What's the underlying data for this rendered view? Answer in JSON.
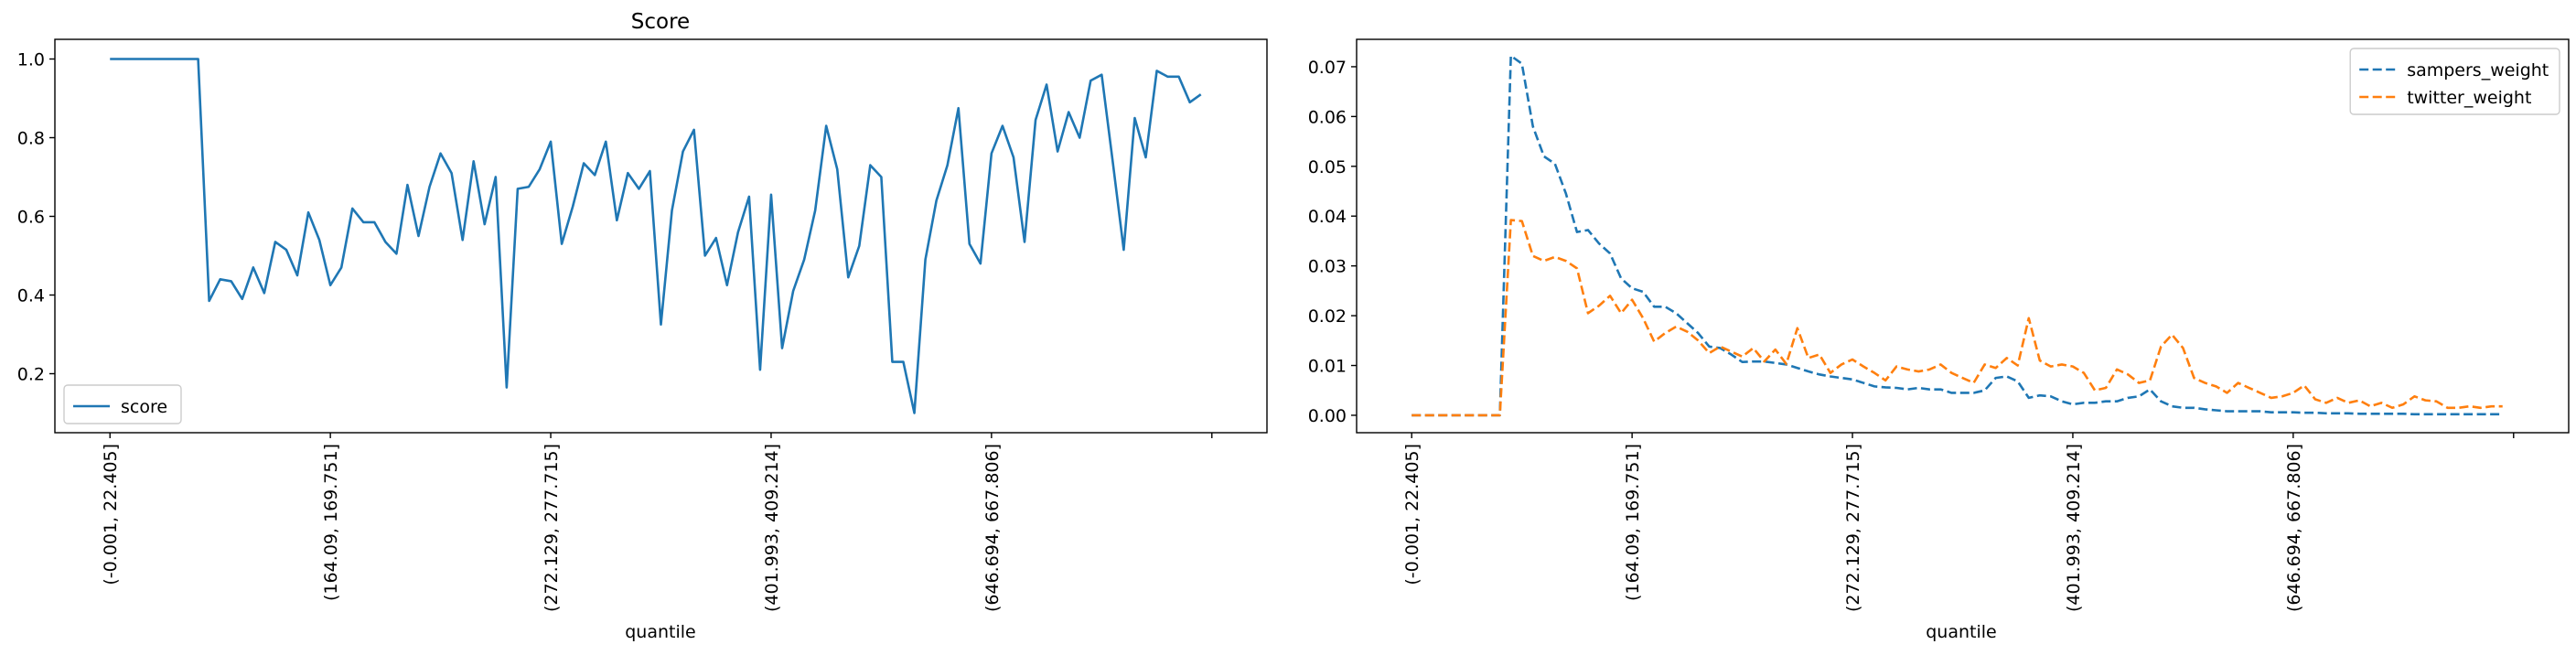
{
  "chart_data": [
    {
      "type": "line",
      "title": "Score",
      "xlabel": "quantile",
      "ylabel": "",
      "xlim": [
        -5,
        105
      ],
      "ylim": [
        0.05,
        1.05
      ],
      "grid": false,
      "legend_position": "lower-left",
      "xticks": [
        0,
        20,
        40,
        60,
        80,
        100
      ],
      "xtick_labels": [
        "(-0.001, 22.405]",
        "(164.09, 169.751]",
        "(272.129, 277.715]",
        "(401.993, 409.214]",
        "(646.694, 667.806]",
        ""
      ],
      "yticks": [
        0.2,
        0.4,
        0.6,
        0.8,
        1.0
      ],
      "ytick_labels": [
        "0.2",
        "0.4",
        "0.6",
        "0.8",
        "1.0"
      ],
      "series": [
        {
          "name": "score",
          "color": "#1f77b4",
          "dash": "solid",
          "values": [
            1.0,
            1.0,
            1.0,
            1.0,
            1.0,
            1.0,
            1.0,
            1.0,
            1.0,
            0.385,
            0.44,
            0.435,
            0.39,
            0.47,
            0.405,
            0.535,
            0.515,
            0.45,
            0.61,
            0.54,
            0.425,
            0.47,
            0.62,
            0.585,
            0.585,
            0.535,
            0.505,
            0.68,
            0.55,
            0.675,
            0.76,
            0.71,
            0.54,
            0.74,
            0.58,
            0.7,
            0.165,
            0.67,
            0.675,
            0.72,
            0.79,
            0.53,
            0.625,
            0.735,
            0.705,
            0.79,
            0.59,
            0.71,
            0.67,
            0.715,
            0.325,
            0.615,
            0.765,
            0.82,
            0.5,
            0.545,
            0.425,
            0.56,
            0.65,
            0.21,
            0.655,
            0.265,
            0.41,
            0.49,
            0.615,
            0.83,
            0.72,
            0.445,
            0.525,
            0.73,
            0.7,
            0.23,
            0.23,
            0.1,
            0.49,
            0.64,
            0.73,
            0.875,
            0.53,
            0.48,
            0.76,
            0.83,
            0.75,
            0.535,
            0.845,
            0.935,
            0.765,
            0.865,
            0.8,
            0.945,
            0.96,
            0.74,
            0.515,
            0.85,
            0.75,
            0.97,
            0.955,
            0.955,
            0.89,
            0.91
          ]
        }
      ]
    },
    {
      "type": "line",
      "title": "",
      "xlabel": "quantile",
      "ylabel": "",
      "xlim": [
        -5,
        105
      ],
      "ylim": [
        -0.0035,
        0.0755
      ],
      "grid": false,
      "legend_position": "upper-right",
      "xticks": [
        0,
        20,
        40,
        60,
        80,
        100
      ],
      "xtick_labels": [
        "(-0.001, 22.405]",
        "(164.09, 169.751]",
        "(272.129, 277.715]",
        "(401.993, 409.214]",
        "(646.694, 667.806]",
        ""
      ],
      "yticks": [
        0.0,
        0.01,
        0.02,
        0.03,
        0.04,
        0.05,
        0.06,
        0.07
      ],
      "ytick_labels": [
        "0.00",
        "0.01",
        "0.02",
        "0.03",
        "0.04",
        "0.05",
        "0.06",
        "0.07"
      ],
      "series": [
        {
          "name": "sampers_weight",
          "color": "#1f77b4",
          "dash": "dashed",
          "values": [
            0,
            0,
            0,
            0,
            0,
            0,
            0,
            0,
            0,
            0.0722,
            0.0706,
            0.058,
            0.052,
            0.0505,
            0.0445,
            0.0368,
            0.0372,
            0.0345,
            0.0325,
            0.0275,
            0.0255,
            0.0248,
            0.0218,
            0.0218,
            0.0205,
            0.0185,
            0.0165,
            0.0138,
            0.0135,
            0.0122,
            0.0107,
            0.0108,
            0.0108,
            0.0105,
            0.0102,
            0.0095,
            0.0088,
            0.0082,
            0.0078,
            0.0075,
            0.0072,
            0.0065,
            0.0058,
            0.0056,
            0.0055,
            0.0052,
            0.0055,
            0.0052,
            0.0052,
            0.0045,
            0.0045,
            0.0045,
            0.005,
            0.0075,
            0.0078,
            0.0068,
            0.0035,
            0.004,
            0.0038,
            0.0028,
            0.0022,
            0.0025,
            0.0025,
            0.0028,
            0.0028,
            0.0035,
            0.0038,
            0.0052,
            0.0028,
            0.0018,
            0.0015,
            0.0015,
            0.0012,
            0.001,
            0.0008,
            0.0008,
            0.0008,
            0.0008,
            0.0006,
            0.0006,
            0.0006,
            0.0005,
            0.0005,
            0.0004,
            0.0004,
            0.0004,
            0.0003,
            0.0003,
            0.0003,
            0.0003,
            0.0003,
            0.0002,
            0.0002,
            0.0002,
            0.0002,
            0.0002,
            0.0002,
            0.0002,
            0.0002,
            0.0002
          ]
        },
        {
          "name": "twitter_weight",
          "color": "#ff7f0e",
          "dash": "dashed",
          "values": [
            0,
            0,
            0,
            0,
            0,
            0,
            0,
            0,
            0,
            0.0392,
            0.039,
            0.032,
            0.031,
            0.0318,
            0.031,
            0.0295,
            0.0205,
            0.022,
            0.024,
            0.0205,
            0.0232,
            0.0195,
            0.0148,
            0.0165,
            0.0178,
            0.0168,
            0.015,
            0.0125,
            0.0138,
            0.0128,
            0.0118,
            0.0135,
            0.0108,
            0.0132,
            0.0103,
            0.0175,
            0.0115,
            0.0122,
            0.0085,
            0.0102,
            0.0112,
            0.0098,
            0.0085,
            0.007,
            0.0098,
            0.0092,
            0.0088,
            0.0092,
            0.0102,
            0.0085,
            0.0075,
            0.0065,
            0.0102,
            0.0095,
            0.0115,
            0.01,
            0.0195,
            0.011,
            0.0098,
            0.0102,
            0.0098,
            0.0085,
            0.005,
            0.0055,
            0.0092,
            0.0082,
            0.0065,
            0.007,
            0.0138,
            0.0162,
            0.0135,
            0.0075,
            0.0065,
            0.0058,
            0.0045,
            0.0065,
            0.0055,
            0.0045,
            0.0035,
            0.0038,
            0.0045,
            0.006,
            0.0032,
            0.0025,
            0.0035,
            0.0025,
            0.003,
            0.0018,
            0.0025,
            0.0015,
            0.0022,
            0.0038,
            0.003,
            0.0028,
            0.0015,
            0.0015,
            0.0018,
            0.0015,
            0.0018,
            0.0018
          ]
        }
      ]
    }
  ]
}
